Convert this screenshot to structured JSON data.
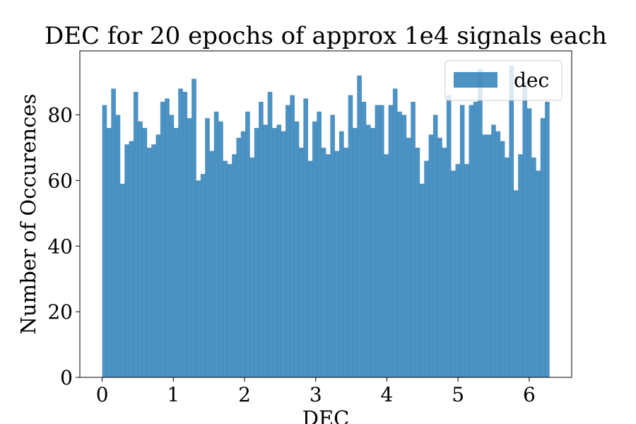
{
  "chart_data": {
    "type": "bar",
    "title": "DEC for 20 epochs of approx 1e4 signals each",
    "xlabel": "DEC",
    "ylabel": "Number of Occurences",
    "xlim": [
      -0.314,
      6.597
    ],
    "ylim": [
      0,
      99.5
    ],
    "xticks": [
      0,
      1,
      2,
      3,
      4,
      5,
      6
    ],
    "yticks": [
      0,
      20,
      40,
      60,
      80
    ],
    "bin_start": 0,
    "bin_end": 6.2832,
    "color": "#1f77b4",
    "opacity": 0.8,
    "legend": {
      "position": "top-right",
      "label": "dec"
    },
    "grid": false,
    "values": [
      83,
      76,
      88,
      80,
      59,
      71,
      72,
      87,
      78,
      76,
      70,
      71,
      74,
      84,
      85,
      80,
      76,
      88,
      87,
      79,
      91,
      60,
      62,
      79,
      69,
      81,
      78,
      66,
      65,
      68,
      73,
      75,
      81,
      67,
      76,
      84,
      77,
      87,
      76,
      77,
      75,
      83,
      86,
      78,
      70,
      85,
      66,
      78,
      81,
      70,
      68,
      80,
      69,
      75,
      70,
      86,
      76,
      92,
      84,
      77,
      76,
      83,
      83,
      68,
      83,
      88,
      81,
      80,
      73,
      84,
      70,
      59,
      66,
      74,
      80,
      73,
      70,
      86,
      63,
      65,
      83,
      65,
      83,
      84,
      94,
      74,
      74,
      77,
      75,
      72,
      67,
      95,
      57,
      68,
      90,
      82,
      67,
      63,
      79,
      84
    ]
  }
}
